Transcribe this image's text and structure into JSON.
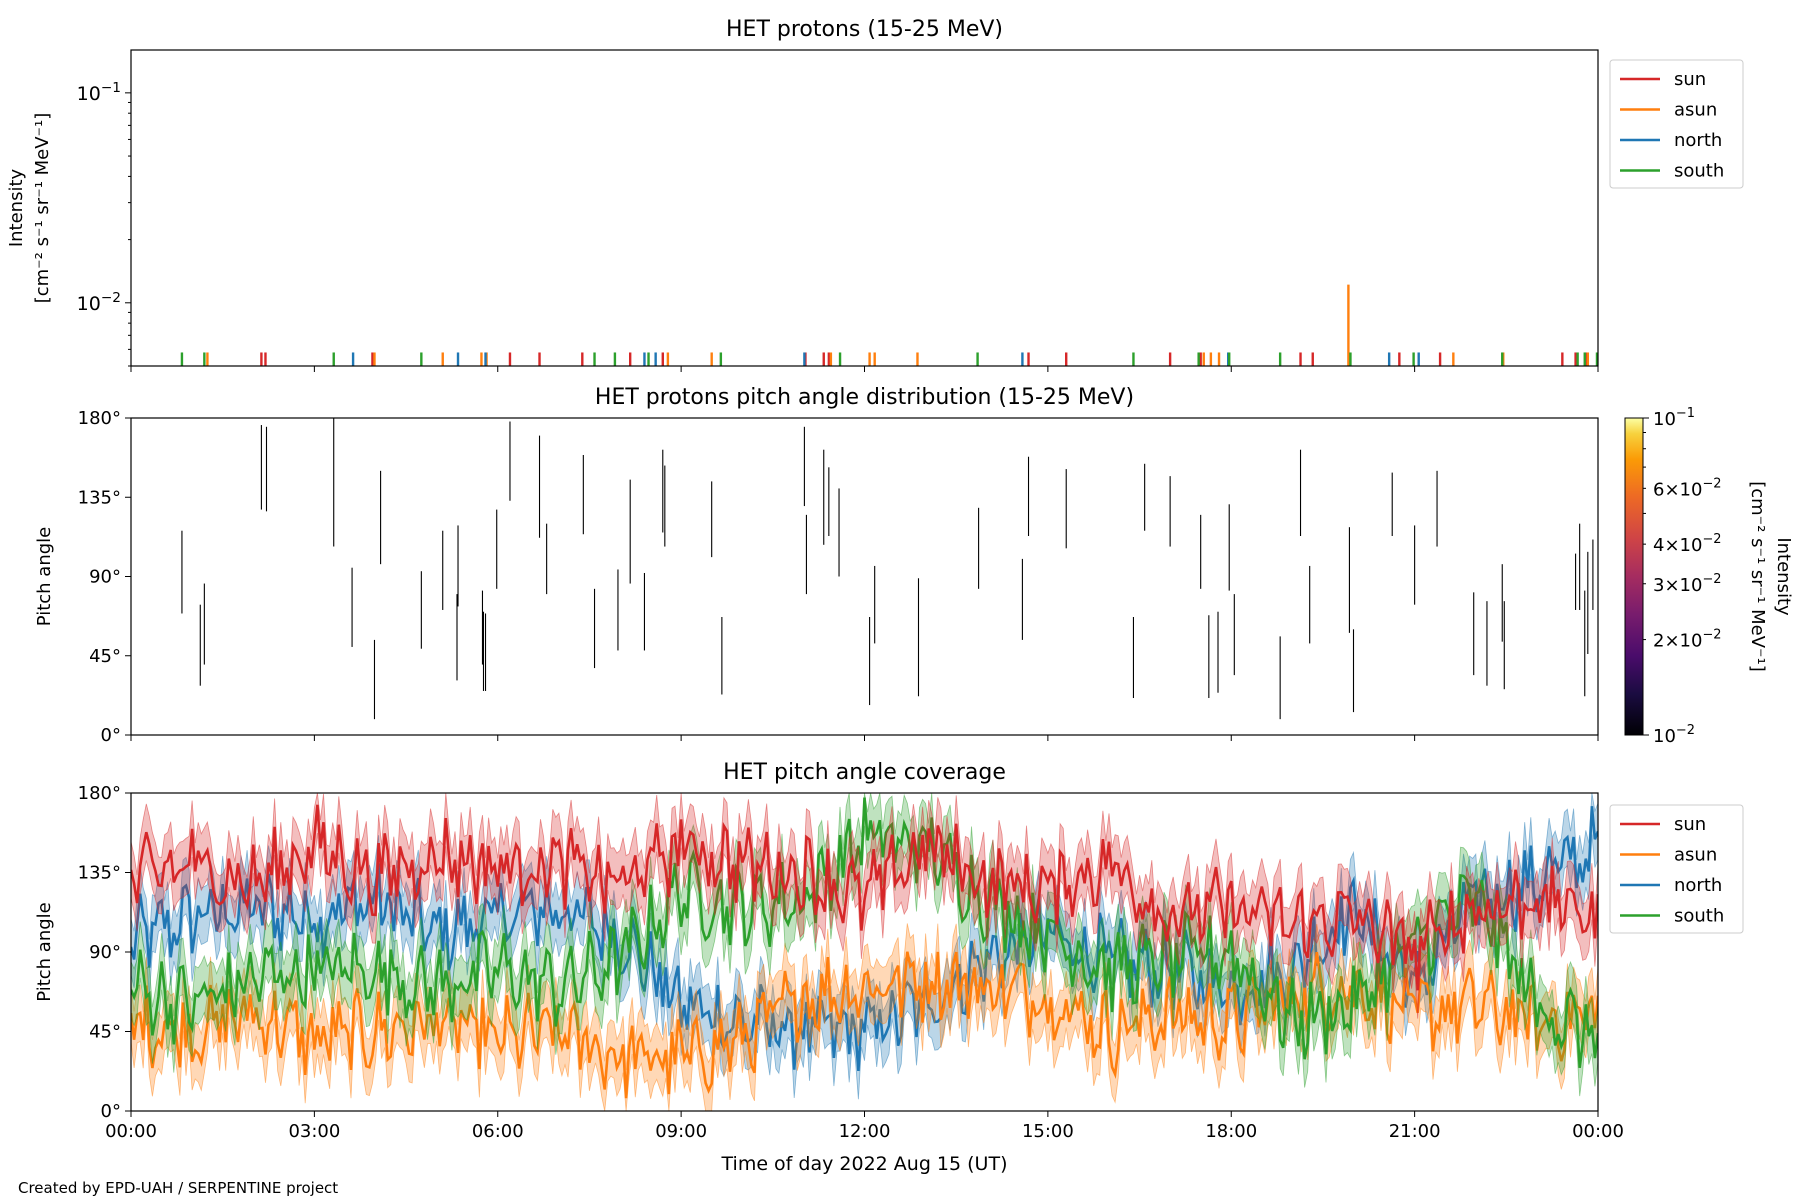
{
  "chart_data": [
    {
      "type": "line",
      "title": "HET protons (15-25 MeV)",
      "ylabel_line1": "Intensity",
      "ylabel_line2": "[cm⁻² s⁻¹ sr⁻¹ MeV⁻¹]",
      "yscale": "log",
      "ylim": [
        0.005,
        0.16
      ],
      "yticks": [
        {
          "v": 0.1,
          "base": "10",
          "exp": "−1"
        },
        {
          "v": 0.01,
          "base": "10",
          "exp": "−2"
        }
      ],
      "xlim": [
        "2022-08-15 00:00",
        "2022-08-16 00:00"
      ],
      "legend_placement": "outside-right-top",
      "legend": [
        {
          "name": "sun",
          "color": "#d62728"
        },
        {
          "name": "asun",
          "color": "#ff7f0e"
        },
        {
          "name": "north",
          "color": "#1f77b4"
        },
        {
          "name": "south",
          "color": "#2ca02c"
        }
      ],
      "series": [
        {
          "name": "sun",
          "x": [
            "02:08",
            "02:12",
            "03:57",
            "06:12",
            "06:41",
            "07:23",
            "08:10",
            "08:42",
            "11:02",
            "11:20",
            "11:25",
            "14:41",
            "15:18",
            "17:00",
            "17:30",
            "19:08",
            "19:20",
            "20:45",
            "21:25",
            "23:25",
            "23:38",
            "23:48"
          ],
          "y": [
            0.0058,
            0.0058,
            0.0058,
            0.0058,
            0.0058,
            0.0058,
            0.0058,
            0.0058,
            0.0058,
            0.0058,
            0.0058,
            0.0058,
            0.0058,
            0.0058,
            0.0058,
            0.0058,
            0.0058,
            0.0058,
            0.0058,
            0.0058,
            0.0058,
            0.0058
          ]
        },
        {
          "name": "asun",
          "x": [
            "01:15",
            "03:59",
            "05:06",
            "05:44",
            "05:49",
            "08:47",
            "09:30",
            "11:27",
            "12:05",
            "12:10",
            "12:52",
            "17:33",
            "17:40",
            "17:48",
            "19:55",
            "21:38",
            "22:27",
            "23:50"
          ],
          "y": [
            0.0058,
            0.0058,
            0.0058,
            0.0058,
            0.0058,
            0.0058,
            0.0058,
            0.0058,
            0.0058,
            0.0058,
            0.0058,
            0.0058,
            0.0058,
            0.0058,
            0.0122,
            0.0058,
            0.0058,
            0.0058
          ]
        },
        {
          "name": "north",
          "x": [
            "03:38",
            "05:21",
            "05:48",
            "08:24",
            "08:35",
            "11:01",
            "14:35",
            "17:57",
            "20:35",
            "21:04"
          ],
          "y": [
            0.0058,
            0.0058,
            0.0058,
            0.0058,
            0.0058,
            0.0058,
            0.0058,
            0.0058,
            0.0058,
            0.0058
          ]
        },
        {
          "name": "south",
          "x": [
            "00:50",
            "01:12",
            "03:19",
            "04:45",
            "07:35",
            "07:55",
            "08:28",
            "09:39",
            "11:36",
            "13:51",
            "16:24",
            "17:28",
            "17:58",
            "18:48",
            "19:57",
            "20:59",
            "22:26",
            "23:40",
            "23:47",
            "23:59"
          ],
          "y": [
            0.0058,
            0.0058,
            0.0058,
            0.0058,
            0.0058,
            0.0058,
            0.0058,
            0.0058,
            0.0058,
            0.0058,
            0.0058,
            0.0058,
            0.0058,
            0.0058,
            0.0058,
            0.0058,
            0.0058,
            0.0058,
            0.0058,
            0.0058
          ]
        }
      ],
      "xtick_labels_shown": false
    },
    {
      "type": "heatmap",
      "title": "HET protons pitch angle distribution (15-25 MeV)",
      "ylabel": "Pitch angle",
      "ylim": [
        0,
        180
      ],
      "yticks": [
        "0°",
        "45°",
        "90°",
        "135°",
        "180°"
      ],
      "colorbar": {
        "label_line1": "Intensity",
        "label_line2": "[cm⁻² s⁻¹ sr⁻¹ MeV⁻¹]",
        "scale": "log",
        "range": [
          0.01,
          0.1
        ],
        "colormap": "inferno",
        "ticks": [
          {
            "v": 0.1,
            "mant": "",
            "base": "10",
            "exp": "−1"
          },
          {
            "v": 0.06,
            "mant": "6×",
            "base": "10",
            "exp": "−2"
          },
          {
            "v": 0.04,
            "mant": "4×",
            "base": "10",
            "exp": "−2"
          },
          {
            "v": 0.03,
            "mant": "3×",
            "base": "10",
            "exp": "−2"
          },
          {
            "v": 0.02,
            "mant": "2×",
            "base": "10",
            "exp": "−2"
          },
          {
            "v": 0.01,
            "mant": "",
            "base": "10",
            "exp": "−2"
          }
        ]
      },
      "segments": [
        [
          "00:50",
          69,
          116
        ],
        [
          "01:08",
          28,
          74
        ],
        [
          "01:12",
          40,
          86
        ],
        [
          "02:08",
          128,
          176
        ],
        [
          "02:13",
          127,
          175
        ],
        [
          "03:19",
          107,
          180
        ],
        [
          "03:37",
          50,
          95
        ],
        [
          "03:59",
          9,
          54
        ],
        [
          "04:05",
          97,
          150
        ],
        [
          "04:45",
          49,
          93
        ],
        [
          "05:06",
          71,
          116
        ],
        [
          "05:20",
          31,
          80
        ],
        [
          "05:21",
          73,
          119
        ],
        [
          "05:45",
          40,
          82
        ],
        [
          "05:46",
          25,
          70
        ],
        [
          "05:48",
          25,
          69
        ],
        [
          "05:59",
          83,
          128
        ],
        [
          "06:12",
          133,
          178
        ],
        [
          "06:41",
          112,
          170
        ],
        [
          "06:48",
          80,
          120
        ],
        [
          "07:24",
          114,
          159
        ],
        [
          "07:35",
          38,
          83
        ],
        [
          "07:58",
          48,
          94
        ],
        [
          "08:10",
          86,
          145
        ],
        [
          "08:24",
          48,
          92
        ],
        [
          "08:42",
          115,
          162
        ],
        [
          "08:44",
          107,
          153
        ],
        [
          "09:30",
          101,
          144
        ],
        [
          "09:40",
          23,
          67
        ],
        [
          "11:01",
          130,
          175
        ],
        [
          "11:03",
          80,
          125
        ],
        [
          "11:20",
          108,
          162
        ],
        [
          "11:25",
          113,
          152
        ],
        [
          "11:35",
          90,
          140
        ],
        [
          "12:05",
          17,
          67
        ],
        [
          "12:10",
          52,
          96
        ],
        [
          "12:53",
          22,
          89
        ],
        [
          "13:52",
          83,
          129
        ],
        [
          "14:35",
          54,
          100
        ],
        [
          "14:41",
          113,
          158
        ],
        [
          "15:18",
          106,
          151
        ],
        [
          "16:24",
          21,
          67
        ],
        [
          "16:35",
          116,
          154
        ],
        [
          "17:00",
          107,
          147
        ],
        [
          "17:30",
          83,
          125
        ],
        [
          "17:38",
          21,
          68
        ],
        [
          "17:47",
          24,
          70
        ],
        [
          "17:58",
          82,
          131
        ],
        [
          "18:03",
          34,
          80
        ],
        [
          "18:48",
          9,
          56
        ],
        [
          "19:08",
          113,
          162
        ],
        [
          "19:17",
          52,
          96
        ],
        [
          "19:56",
          58,
          118
        ],
        [
          "20:00",
          13,
          60
        ],
        [
          "20:38",
          113,
          149
        ],
        [
          "21:00",
          74,
          119
        ],
        [
          "21:22",
          107,
          150
        ],
        [
          "21:58",
          34,
          81
        ],
        [
          "22:11",
          28,
          76
        ],
        [
          "22:26",
          53,
          97
        ],
        [
          "22:28",
          26,
          76
        ],
        [
          "23:38",
          71,
          103
        ],
        [
          "23:42",
          71,
          120
        ],
        [
          "23:47",
          22,
          82
        ],
        [
          "23:50",
          46,
          104
        ],
        [
          "23:55",
          71,
          111
        ]
      ]
    },
    {
      "type": "line",
      "title": "HET pitch angle coverage",
      "ylabel": "Pitch angle",
      "xlabel": "Time of day 2022 Aug 15 (UT)",
      "ylim": [
        0,
        180
      ],
      "yticks": [
        "0°",
        "45°",
        "90°",
        "135°",
        "180°"
      ],
      "xticks": [
        "00:00",
        "03:00",
        "06:00",
        "09:00",
        "12:00",
        "15:00",
        "18:00",
        "21:00",
        "00:00"
      ],
      "legend_placement": "outside-right-top",
      "legend": [
        {
          "name": "sun",
          "color": "#d62728"
        },
        {
          "name": "asun",
          "color": "#ff7f0e"
        },
        {
          "name": "north",
          "color": "#1f77b4"
        },
        {
          "name": "south",
          "color": "#2ca02c"
        }
      ],
      "shaded_band_half_width_deg": 16,
      "series": [
        {
          "name": "sun",
          "x_hours": [
            0,
            1,
            2,
            3,
            4,
            5,
            6,
            7,
            8,
            9,
            10,
            11,
            12,
            13,
            14,
            15,
            16,
            17,
            18,
            19,
            20,
            21,
            22,
            23,
            24
          ],
          "y": [
            130,
            140,
            128,
            150,
            132,
            145,
            138,
            140,
            128,
            150,
            140,
            135,
            120,
            150,
            130,
            125,
            140,
            110,
            115,
            105,
            110,
            90,
            115,
            120,
            110
          ]
        },
        {
          "name": "asun",
          "x_hours": [
            0,
            1,
            2,
            3,
            4,
            5,
            6,
            7,
            8,
            9,
            10,
            11,
            12,
            13,
            14,
            15,
            16,
            17,
            18,
            19,
            20,
            21,
            22,
            23,
            24
          ],
          "y": [
            50,
            45,
            55,
            40,
            45,
            50,
            40,
            45,
            30,
            30,
            40,
            65,
            70,
            75,
            70,
            65,
            45,
            55,
            50,
            65,
            70,
            55,
            60,
            50,
            55
          ]
        },
        {
          "name": "north",
          "x_hours": [
            0,
            1,
            2,
            3,
            4,
            5,
            6,
            7,
            8,
            9,
            10,
            11,
            12,
            13,
            14,
            15,
            16,
            17,
            18,
            19,
            20,
            21,
            22,
            23,
            24
          ],
          "y": [
            95,
            110,
            115,
            110,
            120,
            100,
            110,
            115,
            100,
            60,
            50,
            45,
            45,
            60,
            85,
            100,
            85,
            80,
            70,
            80,
            115,
            70,
            120,
            130,
            150
          ]
        },
        {
          "name": "south",
          "x_hours": [
            0,
            1,
            2,
            3,
            4,
            5,
            6,
            7,
            8,
            9,
            10,
            11,
            12,
            13,
            14,
            15,
            16,
            17,
            18,
            19,
            20,
            21,
            22,
            23,
            24
          ],
          "y": [
            70,
            60,
            75,
            80,
            80,
            70,
            80,
            70,
            85,
            125,
            115,
            120,
            155,
            150,
            120,
            100,
            80,
            85,
            90,
            50,
            60,
            95,
            120,
            60,
            40
          ]
        }
      ]
    }
  ],
  "credit": "Created by EPD-UAH / SERPENTINE project"
}
